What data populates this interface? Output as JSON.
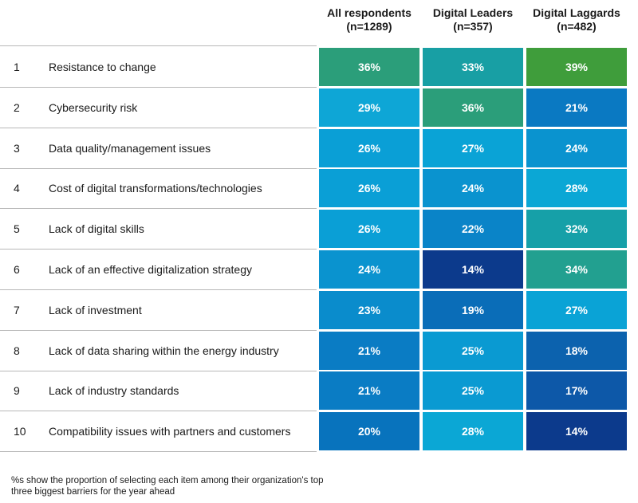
{
  "table": {
    "columns": [
      [
        "All respondents",
        "(n=1289)"
      ],
      [
        "Digital Leaders",
        "(n=357)"
      ],
      [
        "Digital Laggards",
        "(n=482)"
      ]
    ],
    "rows": [
      {
        "rank": "1",
        "label": "Resistance to change",
        "cells": [
          "36%",
          "33%",
          "39%"
        ],
        "colors": [
          "#2b9e7a",
          "#189fa4",
          "#3f9d3b"
        ]
      },
      {
        "rank": "2",
        "label": "Cybersecurity risk",
        "cells": [
          "29%",
          "36%",
          "21%"
        ],
        "colors": [
          "#0ea6d6",
          "#2b9e7a",
          "#0a79c2"
        ]
      },
      {
        "rank": "3",
        "label": "Data quality/management issues",
        "cells": [
          "26%",
          "27%",
          "24%"
        ],
        "colors": [
          "#0a9fd6",
          "#0aa3d6",
          "#0a93cf"
        ]
      },
      {
        "rank": "4",
        "label": "Cost of digital transformations/technologies",
        "cells": [
          "26%",
          "24%",
          "28%"
        ],
        "colors": [
          "#0a9fd6",
          "#0a93cf",
          "#0ba7d5"
        ]
      },
      {
        "rank": "5",
        "label": "Lack of digital skills",
        "cells": [
          "26%",
          "22%",
          "32%"
        ],
        "colors": [
          "#0a9fd6",
          "#0a84c8",
          "#16a0a8"
        ]
      },
      {
        "rank": "6",
        "label": "Lack of an effective digitalization strategy",
        "cells": [
          "24%",
          "14%",
          "34%"
        ],
        "colors": [
          "#0a93cf",
          "#0c3a8c",
          "#22a090"
        ]
      },
      {
        "rank": "7",
        "label": "Lack of investment",
        "cells": [
          "23%",
          "19%",
          "27%"
        ],
        "colors": [
          "#0a8ccc",
          "#0a6db8",
          "#0aa3d6"
        ]
      },
      {
        "rank": "8",
        "label": "Lack of data sharing within the energy industry",
        "cells": [
          "21%",
          "25%",
          "18%"
        ],
        "colors": [
          "#0a7cc4",
          "#0a9ad2",
          "#0c62ae"
        ]
      },
      {
        "rank": "9",
        "label": "Lack of industry standards",
        "cells": [
          "21%",
          "25%",
          "17%"
        ],
        "colors": [
          "#0a7cc4",
          "#0a9ad2",
          "#0d58a8"
        ]
      },
      {
        "rank": "10",
        "label": "Compatibility issues with partners and customers",
        "cells": [
          "20%",
          "28%",
          "14%"
        ],
        "colors": [
          "#0873bd",
          "#0ba7d5",
          "#0c3a8c"
        ]
      }
    ]
  },
  "footnote": "%s show the proportion of selecting each item among their organization's top three biggest barriers for the year ahead"
}
